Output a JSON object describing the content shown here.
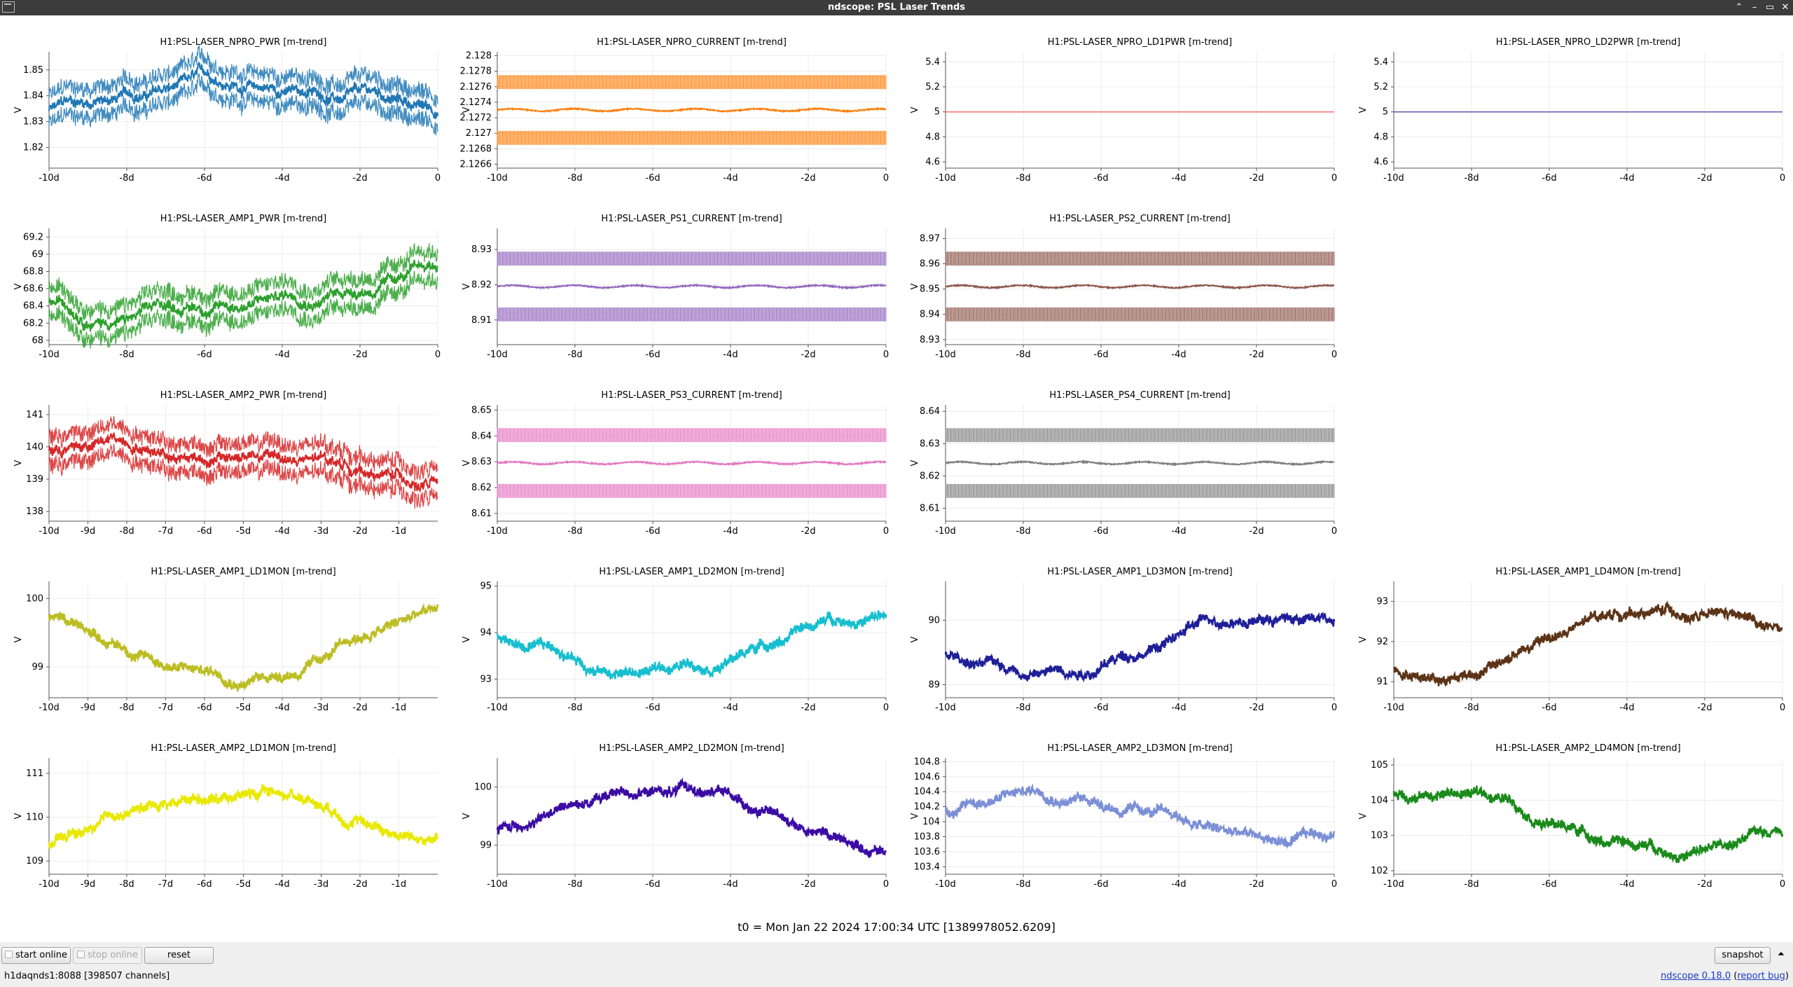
{
  "window": {
    "title": "ndscope: PSL Laser Trends",
    "controls": [
      "⌃",
      "–",
      "▭",
      "✕"
    ]
  },
  "t0_label": "t0 = Mon Jan 22 2024 17:00:34 UTC [1389978052.6209]",
  "toolbar": {
    "start_online": "start online",
    "stop_online": "stop online",
    "reset": "reset",
    "snapshot": "snapshot",
    "expand": "⏶"
  },
  "status": {
    "server": "h1daqnds1:8088  [398507 channels]",
    "version": "ndscope 0.18.0",
    "report_bug": "report bug"
  },
  "plots": [
    {
      "title": "H1:PSL-LASER_NPRO_PWR [m-trend]",
      "color": "#1f77b4",
      "style": "band",
      "ylabel": "V",
      "yticks": [
        "1.85",
        "1.84",
        "1.83",
        "1.82"
      ],
      "xticks": [
        "-10d",
        "-8d",
        "-6d",
        "-4d",
        "-2d",
        "0"
      ],
      "x_range_days": [
        -10,
        0
      ],
      "y_range": [
        1.812,
        1.857
      ]
    },
    {
      "title": "H1:PSL-LASER_NPRO_CURRENT [m-trend]",
      "color": "#ff7f0e",
      "style": "digital",
      "ylabel": "V",
      "yticks": [
        "2.128",
        "2.1278",
        "2.1276",
        "2.1274",
        "2.1272",
        "2.127",
        "2.1268",
        "2.1266"
      ],
      "xticks": [
        "-10d",
        "-8d",
        "-6d",
        "-4d",
        "-2d",
        "0"
      ],
      "x_range_days": [
        -10,
        0
      ],
      "y_range": [
        2.12655,
        2.12805
      ]
    },
    {
      "title": "H1:PSL-LASER_NPRO_LD1PWR [m-trend]",
      "color": "#ff6b6b",
      "style": "flat",
      "ylabel": "V",
      "yticks": [
        "5.4",
        "5.2",
        "5",
        "4.8",
        "4.6"
      ],
      "xticks": [
        "-10d",
        "-8d",
        "-6d",
        "-4d",
        "-2d",
        "0"
      ],
      "x_range_days": [
        -10,
        0
      ],
      "y_range": [
        4.55,
        5.48
      ]
    },
    {
      "title": "H1:PSL-LASER_NPRO_LD2PWR [m-trend]",
      "color": "#5a5aa8",
      "style": "flat",
      "ylabel": "V",
      "yticks": [
        "5.4",
        "5.2",
        "5",
        "4.8",
        "4.6"
      ],
      "xticks": [
        "-10d",
        "-8d",
        "-6d",
        "-4d",
        "-2d",
        "0"
      ],
      "x_range_days": [
        -10,
        0
      ],
      "y_range": [
        4.55,
        5.48
      ]
    },
    {
      "title": "H1:PSL-LASER_AMP1_PWR [m-trend]",
      "color": "#2ca02c",
      "style": "band",
      "ylabel": "V",
      "yticks": [
        "69.2",
        "69",
        "68.8",
        "68.6",
        "68.4",
        "68.2",
        "68"
      ],
      "xticks": [
        "-10d",
        "-8d",
        "-6d",
        "-4d",
        "-2d",
        "0"
      ],
      "x_range_days": [
        -10,
        0
      ],
      "y_range": [
        67.95,
        69.3
      ]
    },
    {
      "title": "H1:PSL-LASER_PS1_CURRENT [m-trend]",
      "color": "#9467bd",
      "style": "digital",
      "ylabel": "V",
      "yticks": [
        "8.93",
        "8.92",
        "8.91"
      ],
      "xticks": [
        "-10d",
        "-8d",
        "-6d",
        "-4d",
        "-2d",
        "0"
      ],
      "x_range_days": [
        -10,
        0
      ],
      "y_range": [
        8.903,
        8.936
      ]
    },
    {
      "title": "H1:PSL-LASER_PS2_CURRENT [m-trend]",
      "color": "#8c564b",
      "style": "digital",
      "ylabel": "V",
      "yticks": [
        "8.97",
        "8.96",
        "8.95",
        "8.94",
        "8.93"
      ],
      "xticks": [
        "-10d",
        "-8d",
        "-6d",
        "-4d",
        "-2d",
        "0"
      ],
      "x_range_days": [
        -10,
        0
      ],
      "y_range": [
        8.928,
        8.974
      ]
    },
    {
      "title": "H1:PSL-LASER_AMP2_PWR [m-trend]",
      "color": "#d62728",
      "style": "band",
      "ylabel": "V",
      "yticks": [
        "141",
        "140",
        "139",
        "138"
      ],
      "xticks": [
        "-10d",
        "-9d",
        "-8d",
        "-7d",
        "-6d",
        "-5d",
        "-4d",
        "-3d",
        "-2d",
        "-1d"
      ],
      "x_range_days": [
        -10,
        0
      ],
      "y_range": [
        137.7,
        141.3
      ]
    },
    {
      "title": "H1:PSL-LASER_PS3_CURRENT [m-trend]",
      "color": "#e377c2",
      "style": "digital",
      "ylabel": "V",
      "yticks": [
        "8.65",
        "8.64",
        "8.63",
        "8.62",
        "8.61"
      ],
      "xticks": [
        "-10d",
        "-8d",
        "-6d",
        "-4d",
        "-2d",
        "0"
      ],
      "x_range_days": [
        -10,
        0
      ],
      "y_range": [
        8.607,
        8.652
      ]
    },
    {
      "title": "H1:PSL-LASER_PS4_CURRENT [m-trend]",
      "color": "#7f7f7f",
      "style": "digital",
      "ylabel": "V",
      "yticks": [
        "8.64",
        "8.63",
        "8.62",
        "8.61"
      ],
      "xticks": [
        "-10d",
        "-8d",
        "-6d",
        "-4d",
        "-2d",
        "0"
      ],
      "x_range_days": [
        -10,
        0
      ],
      "y_range": [
        8.606,
        8.642
      ]
    },
    {
      "title": "H1:PSL-LASER_AMP1_LD1MON [m-trend]",
      "color": "#bcbd22",
      "style": "noisy",
      "ylabel": "V",
      "yticks": [
        "100",
        "99"
      ],
      "xticks": [
        "-10d",
        "-9d",
        "-8d",
        "-7d",
        "-6d",
        "-5d",
        "-4d",
        "-3d",
        "-2d",
        "-1d"
      ],
      "x_range_days": [
        -10,
        0
      ],
      "y_range": [
        98.55,
        100.25
      ]
    },
    {
      "title": "H1:PSL-LASER_AMP1_LD2MON [m-trend]",
      "color": "#17becf",
      "style": "noisy",
      "ylabel": "V",
      "yticks": [
        "95",
        "94",
        "93"
      ],
      "xticks": [
        "-10d",
        "-8d",
        "-6d",
        "-4d",
        "-2d",
        "0"
      ],
      "x_range_days": [
        -10,
        0
      ],
      "y_range": [
        92.6,
        95.1
      ]
    },
    {
      "title": "H1:PSL-LASER_AMP1_LD3MON [m-trend]",
      "color": "#1f1f99",
      "style": "noisy",
      "ylabel": "V",
      "yticks": [
        "90",
        "89"
      ],
      "xticks": [
        "-10d",
        "-8d",
        "-6d",
        "-4d",
        "-2d",
        "0"
      ],
      "x_range_days": [
        -10,
        0
      ],
      "y_range": [
        88.8,
        90.6
      ]
    },
    {
      "title": "H1:PSL-LASER_AMP1_LD4MON [m-trend]",
      "color": "#5c3317",
      "style": "noisy",
      "ylabel": "V",
      "yticks": [
        "93",
        "92",
        "91"
      ],
      "xticks": [
        "-10d",
        "-8d",
        "-6d",
        "-4d",
        "-2d",
        "0"
      ],
      "x_range_days": [
        -10,
        0
      ],
      "y_range": [
        90.6,
        93.5
      ]
    },
    {
      "title": "H1:PSL-LASER_AMP2_LD1MON [m-trend]",
      "color": "#e8e800",
      "style": "noisy",
      "ylabel": "V",
      "yticks": [
        "111",
        "110",
        "109"
      ],
      "xticks": [
        "-10d",
        "-9d",
        "-8d",
        "-7d",
        "-6d",
        "-5d",
        "-4d",
        "-3d",
        "-2d",
        "-1d"
      ],
      "x_range_days": [
        -10,
        0
      ],
      "y_range": [
        108.7,
        111.35
      ]
    },
    {
      "title": "H1:PSL-LASER_AMP2_LD2MON [m-trend]",
      "color": "#3a0ca3",
      "style": "noisy",
      "ylabel": "V",
      "yticks": [
        "100",
        "99"
      ],
      "xticks": [
        "-10d",
        "-8d",
        "-6d",
        "-4d",
        "-2d",
        "0"
      ],
      "x_range_days": [
        -10,
        0
      ],
      "y_range": [
        98.5,
        100.5
      ]
    },
    {
      "title": "H1:PSL-LASER_AMP2_LD3MON [m-trend]",
      "color": "#7b8fd6",
      "style": "noisy",
      "ylabel": "V",
      "yticks": [
        "104.8",
        "104.6",
        "104.4",
        "104.2",
        "104",
        "103.8",
        "103.6",
        "103.4"
      ],
      "xticks": [
        "-10d",
        "-8d",
        "-6d",
        "-4d",
        "-2d",
        "0"
      ],
      "x_range_days": [
        -10,
        0
      ],
      "y_range": [
        103.3,
        104.85
      ]
    },
    {
      "title": "H1:PSL-LASER_AMP2_LD4MON [m-trend]",
      "color": "#1a8a1a",
      "style": "noisy",
      "ylabel": "V",
      "yticks": [
        "105",
        "104",
        "103",
        "102"
      ],
      "xticks": [
        "-10d",
        "-8d",
        "-6d",
        "-4d",
        "-2d",
        "0"
      ],
      "x_range_days": [
        -10,
        0
      ],
      "y_range": [
        101.9,
        105.2
      ]
    }
  ]
}
